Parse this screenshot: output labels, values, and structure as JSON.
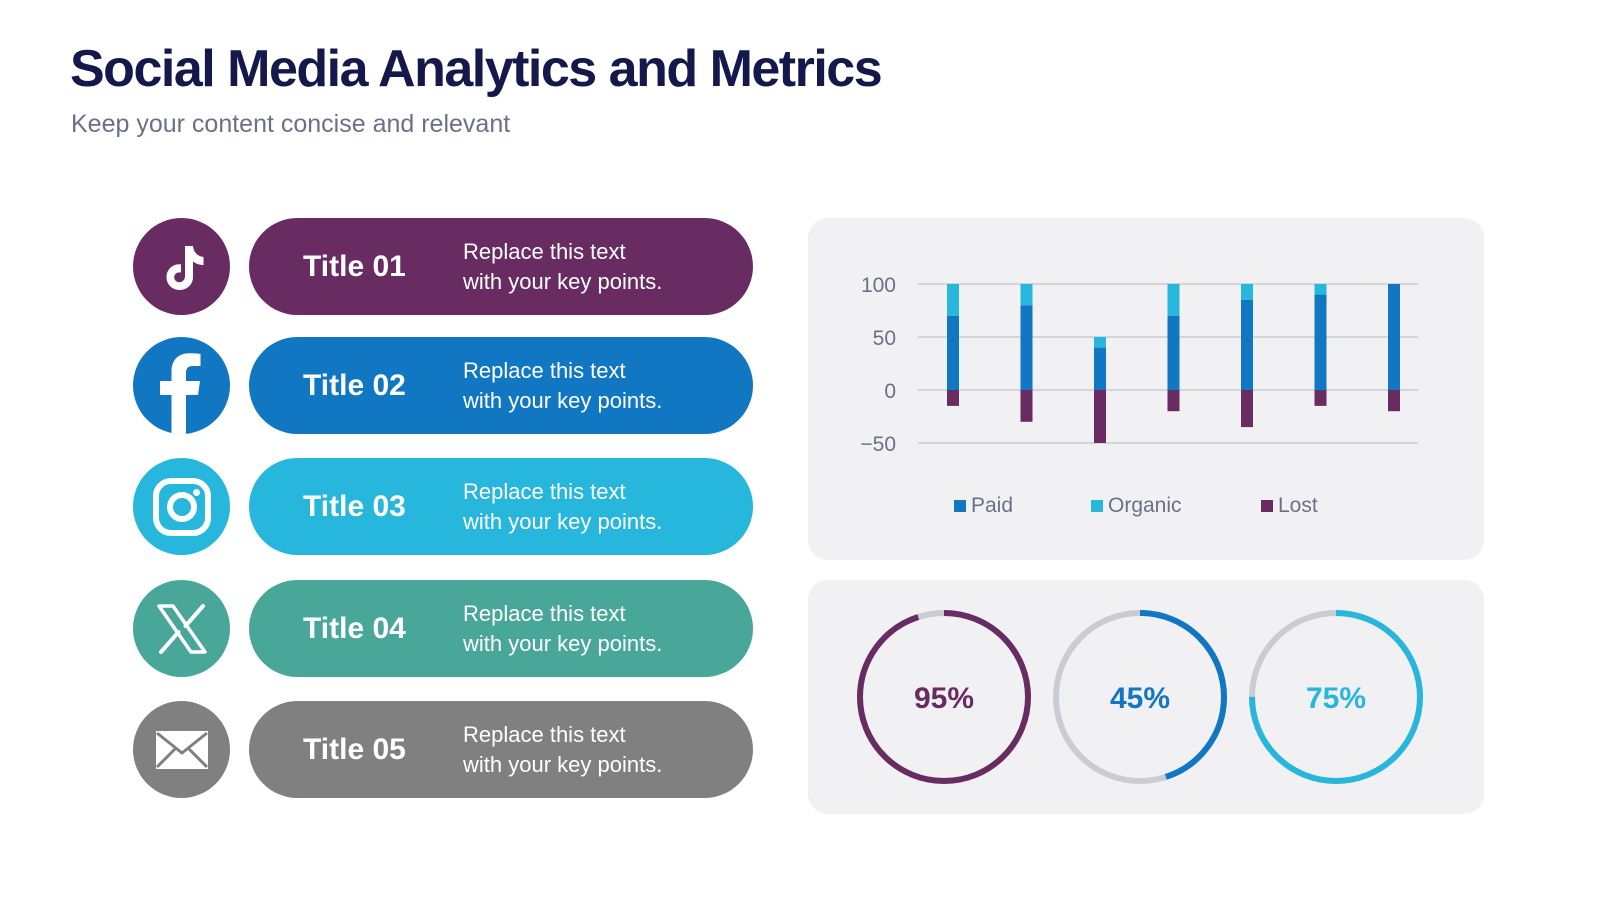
{
  "header": {
    "title": "Social Media Analytics and Metrics",
    "subtitle": "Keep your content concise and relevant"
  },
  "items": [
    {
      "title": "Title 01",
      "text_line1": "Replace this text",
      "text_line2": "with your key points.",
      "icon": "tiktok-icon",
      "color": "#692c62"
    },
    {
      "title": "Title 02",
      "text_line1": "Replace this text",
      "text_line2": "with your key points.",
      "icon": "facebook-icon",
      "color": "#1277c2"
    },
    {
      "title": "Title 03",
      "text_line1": "Replace this text",
      "text_line2": "with your key points.",
      "icon": "instagram-icon",
      "color": "#27b6dc"
    },
    {
      "title": "Title 04",
      "text_line1": "Replace this text",
      "text_line2": "with your key points.",
      "icon": "x-twitter-icon",
      "color": "#48a799"
    },
    {
      "title": "Title 05",
      "text_line1": "Replace this text",
      "text_line2": "with your key points.",
      "icon": "mail-icon",
      "color": "#808080"
    }
  ],
  "chart_data": [
    {
      "type": "bar",
      "stacked": true,
      "categories": [
        "",
        "",
        "",
        "",
        "",
        "",
        ""
      ],
      "series": [
        {
          "name": "Paid",
          "color": "#1277c2",
          "values": [
            70,
            80,
            40,
            70,
            85,
            90,
            100
          ]
        },
        {
          "name": "Organic",
          "color": "#27b6dc",
          "values": [
            30,
            20,
            10,
            30,
            15,
            10,
            0
          ]
        },
        {
          "name": "Lost",
          "color": "#692c62",
          "values": [
            -15,
            -30,
            -50,
            -20,
            -35,
            -15,
            -20
          ]
        }
      ],
      "ylim": [
        -50,
        100
      ],
      "yticks": [
        100,
        50,
        0,
        -50
      ],
      "grid": true,
      "legend": "bottom"
    },
    {
      "type": "pie",
      "subtype": "donut-progress",
      "track_color": "#c8cdd3",
      "items": [
        {
          "value": 95,
          "label": "95%",
          "color": "#692c62"
        },
        {
          "value": 45,
          "label": "45%",
          "color": "#1277c2"
        },
        {
          "value": 75,
          "label": "75%",
          "color": "#27b6dc"
        }
      ]
    }
  ]
}
